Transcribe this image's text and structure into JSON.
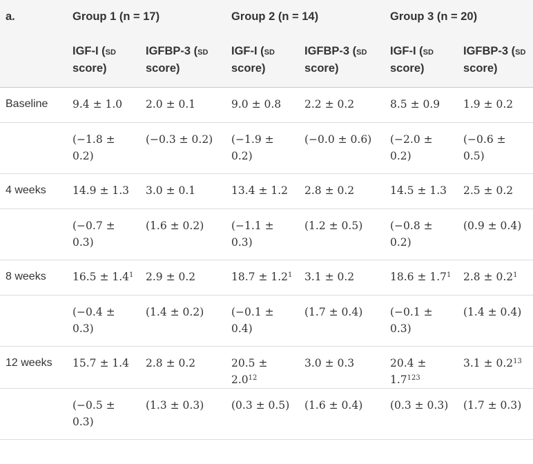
{
  "table": {
    "corner_label": "a.",
    "groups": [
      "Group 1 (n = 17)",
      "Group 2 (n = 14)",
      "Group 3 (n = 20)"
    ],
    "subheaders": [
      {
        "main": "IGF-I (",
        "sc": "SD",
        "tail": " score)"
      },
      {
        "main": "IGFBP-3 (",
        "sc": "SD",
        "tail": " score)"
      }
    ],
    "rows": [
      {
        "label": "Baseline",
        "cells": [
          {
            "v": "9.4 ± 1.0"
          },
          {
            "v": "2.0 ± 0.1"
          },
          {
            "v": "9.0 ± 0.8"
          },
          {
            "v": "2.2 ± 0.2"
          },
          {
            "v": "8.5 ± 0.9"
          },
          {
            "v": "1.9 ± 0.2"
          }
        ]
      },
      {
        "label": "",
        "cells": [
          {
            "v": "(−1.8 ± 0.2)"
          },
          {
            "v": "(−0.3 ± 0.2)"
          },
          {
            "v": "(−1.9 ± 0.2)"
          },
          {
            "v": "(−0.0 ± 0.6)"
          },
          {
            "v": "(−2.0 ± 0.2)"
          },
          {
            "v": "(−0.6 ± 0.5)"
          }
        ]
      },
      {
        "label": "4 weeks",
        "cells": [
          {
            "v": "14.9 ± 1.3"
          },
          {
            "v": "3.0 ± 0.1"
          },
          {
            "v": "13.4 ± 1.2"
          },
          {
            "v": "2.8 ± 0.2"
          },
          {
            "v": "14.5 ± 1.3"
          },
          {
            "v": "2.5 ± 0.2"
          }
        ]
      },
      {
        "label": "",
        "cells": [
          {
            "v": "(−0.7 ± 0.3)"
          },
          {
            "v": "(1.6 ± 0.2)"
          },
          {
            "v": "(−1.1 ± 0.3)"
          },
          {
            "v": "(1.2 ± 0.5)"
          },
          {
            "v": "(−0.8 ± 0.2)"
          },
          {
            "v": "(0.9 ± 0.4)"
          }
        ]
      },
      {
        "label": "8 weeks",
        "cells": [
          {
            "v": "16.5 ± 1.4",
            "sup": "1"
          },
          {
            "v": "2.9 ± 0.2"
          },
          {
            "v": "18.7 ± 1.2",
            "sup": "1"
          },
          {
            "v": "3.1 ± 0.2"
          },
          {
            "v": "18.6 ± 1.7",
            "sup": "1"
          },
          {
            "v": "2.8 ± 0.2",
            "sup": "1"
          }
        ]
      },
      {
        "label": "",
        "cells": [
          {
            "v": "(−0.4 ± 0.3)"
          },
          {
            "v": "(1.4 ± 0.2)"
          },
          {
            "v": "(−0.1 ± 0.4)"
          },
          {
            "v": "(1.7 ± 0.4)"
          },
          {
            "v": "(−0.1 ± 0.3)"
          },
          {
            "v": "(1.4 ± 0.4)"
          }
        ]
      },
      {
        "label": "12 weeks",
        "cells": [
          {
            "v": "15.7 ± 1.4"
          },
          {
            "v": "2.8 ± 0.2"
          },
          {
            "v": "20.5 ± 2.0",
            "sup": "12"
          },
          {
            "v": "3.0 ± 0.3"
          },
          {
            "v": "20.4 ± 1.7",
            "sup": "123"
          },
          {
            "v": "3.1 ± 0.2",
            "sup": "13"
          }
        ]
      },
      {
        "label": "",
        "cells": [
          {
            "v": "(−0.5 ± 0.3)"
          },
          {
            "v": "(1.3 ± 0.3)"
          },
          {
            "v": "(0.3 ± 0.5)"
          },
          {
            "v": "(1.6 ± 0.4)"
          },
          {
            "v": "(0.3 ± 0.3)"
          },
          {
            "v": "(1.7 ± 0.3)"
          }
        ]
      }
    ]
  }
}
